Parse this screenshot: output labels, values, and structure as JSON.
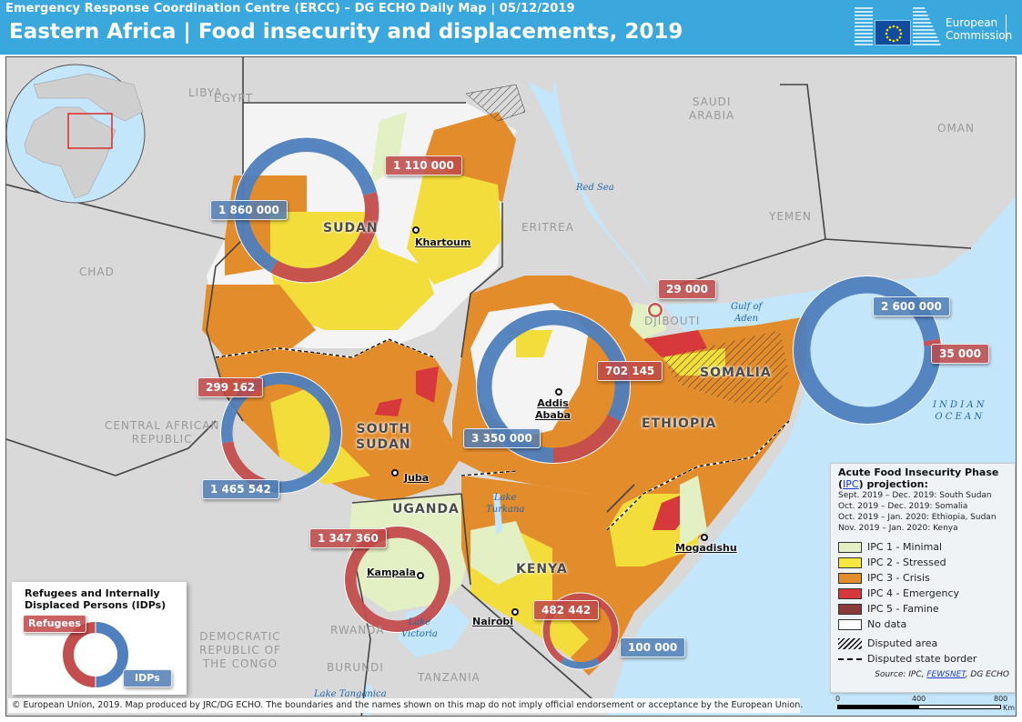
{
  "header": {
    "subtitle": "Emergency Response Coordination Centre (ERCC) – DG ECHO Daily  Map | 05/12/2019",
    "title": "Eastern Africa | Food insecurity and displacements, 2019",
    "logo_text_line1": "European",
    "logo_text_line2": "Commission"
  },
  "countries": {
    "egypt": "EGYPT",
    "libya": "LIBYA",
    "saudi_arabia_1": "SAUDI",
    "saudi_arabia_2": "ARABIA",
    "oman": "OMAN",
    "yemen": "YEMEN",
    "eritrea": "ERITREA",
    "chad": "CHAD",
    "car_1": "CENTRAL AFRICAN",
    "car_2": "REPUBLIC",
    "djibouti": "DJIBOUTI",
    "drc_1": "DEMOCRATIC",
    "drc_2": "REPUBLIC OF",
    "drc_3": "THE CONGO",
    "rwanda": "RWANDA",
    "burundi": "BURUNDI",
    "tanzania": "TANZANIA"
  },
  "focus_countries": {
    "sudan": "SUDAN",
    "south_sudan_1": "SOUTH",
    "south_sudan_2": "SUDAN",
    "ethiopia": "ETHIOPIA",
    "somalia": "SOMALIA",
    "uganda": "UGANDA",
    "kenya": "KENYA"
  },
  "water": {
    "red_sea": "Red Sea",
    "gulf_aden_1": "Gulf of",
    "gulf_aden_2": "Aden",
    "indian_ocean_1": "I N D I A N",
    "indian_ocean_2": "O C E A N",
    "lake_turkana_1": "Lake",
    "lake_turkana_2": "Turkana",
    "lake_victoria_1": "Lake",
    "lake_victoria_2": "Victoria",
    "lake_tanganica": "Lake Tanganica"
  },
  "cities": {
    "khartoum": "Khartoum",
    "juba": "Juba",
    "addis_1": "Addis",
    "addis_2": "Ababa",
    "kampala": "Kampala",
    "nairobi": "Nairobi",
    "mogadishu": "Mogadishu"
  },
  "displacement": [
    {
      "country": "Sudan",
      "refugees": 1110000,
      "idps": 1860000,
      "refugees_label": "1 110 000",
      "idps_label": "1 860 000"
    },
    {
      "country": "South Sudan",
      "refugees": 299162,
      "idps": 1465542,
      "refugees_label": "299 162",
      "idps_label": "1 465 542"
    },
    {
      "country": "Ethiopia",
      "refugees": 702145,
      "idps": 3350000,
      "refugees_label": "702 145",
      "idps_label": "3 350 000"
    },
    {
      "country": "Somalia",
      "refugees": 35000,
      "idps": 2600000,
      "refugees_label": "35 000",
      "idps_label": "2 600 000"
    },
    {
      "country": "Djibouti",
      "refugees": 29000,
      "idps": 0,
      "refugees_label": "29 000",
      "idps_label": ""
    },
    {
      "country": "Uganda",
      "refugees": 1347360,
      "idps": 0,
      "refugees_label": "1 347 360",
      "idps_label": ""
    },
    {
      "country": "Kenya",
      "refugees": 482442,
      "idps": 100000,
      "refugees_label": "482 442",
      "idps_label": "100 000"
    }
  ],
  "ipc_legend": {
    "title": "Acute Food Insecurity Phase",
    "title_link": "IPC",
    "title_suffix": "projection:",
    "periods": [
      "Sept. 2019 – Dec. 2019: South Sudan",
      "Oct. 2019 – Dec. 2019: Somalia",
      "Oct. 2019 – Jan. 2020: Ethiopia, Sudan",
      "Nov. 2019 – Jan. 2020: Kenya"
    ],
    "phases": [
      {
        "label": "IPC 1 - Minimal",
        "color": "#e3f0c4"
      },
      {
        "label": "IPC 2 - Stressed",
        "color": "#f6e640"
      },
      {
        "label": "IPC 3 - Crisis",
        "color": "#e28c2c"
      },
      {
        "label": "IPC 4 - Emergency",
        "color": "#d7383c"
      },
      {
        "label": "IPC 5 - Famine",
        "color": "#8a3a38"
      },
      {
        "label": "No data",
        "color": "#ffffff"
      }
    ],
    "disputed_area": "Disputed area",
    "disputed_border": "Disputed state border",
    "source_prefix": "Source: IPC,",
    "source_link": "FEWSNET",
    "source_suffix": ", DG ECHO"
  },
  "scale_bar": {
    "t0": "0",
    "t1": "400",
    "t2": "800",
    "unit": "Km"
  },
  "refugee_legend": {
    "title_1": "Refugees and Internally",
    "title_2": "Displaced Persons (IDPs)",
    "refugees": "Refugees",
    "idps": "IDPs",
    "refugee_color": "#c44d4d",
    "idp_color": "#4f80bd"
  },
  "footer": "© European Union, 2019. Map produced by JRC/DG ECHO. The boundaries and the names shown on this map do not imply official endorsement or acceptance by the European Union."
}
